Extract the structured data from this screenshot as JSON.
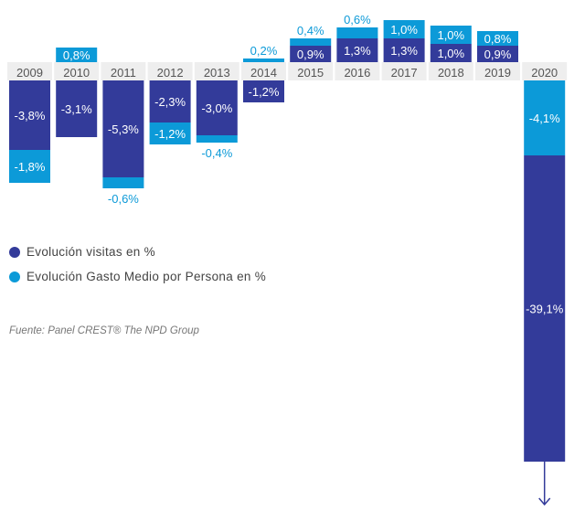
{
  "chart_data": {
    "type": "bar",
    "stacked": true,
    "categories": [
      "2009",
      "2010",
      "2011",
      "2012",
      "2013",
      "2014",
      "2015",
      "2016",
      "2017",
      "2018",
      "2019",
      "2020"
    ],
    "series": [
      {
        "name": "Evolución visitas en %",
        "color": "#333b9a",
        "values": [
          -3.8,
          -3.1,
          -5.3,
          -2.3,
          -3.0,
          -1.2,
          0.9,
          1.3,
          1.3,
          1.0,
          0.9,
          -39.1
        ],
        "labels": [
          "-3,8%",
          "-3,1%",
          "-5,3%",
          "-2,3%",
          "-3,0%",
          "-1,2%",
          "0,9%",
          "1,3%",
          "1,3%",
          "1,0%",
          "0,9%",
          "-39,1%"
        ]
      },
      {
        "name": "Evolución Gasto Medio por Persona en %",
        "color": "#0c9ad8",
        "values": [
          -1.8,
          0.8,
          -0.6,
          -1.2,
          -0.4,
          0.2,
          0.4,
          0.6,
          1.0,
          1.0,
          0.8,
          -4.1
        ],
        "labels": [
          "-1,8%",
          "0,8%",
          "-0,6%",
          "-1,2%",
          "-0,4%",
          "0,2%",
          "0,4%",
          "0,6%",
          "1,0%",
          "1,0%",
          "0,8%",
          "-4,1%"
        ]
      }
    ],
    "truncated_categories": [
      "2020"
    ],
    "grid": false,
    "legend": "bottom-left",
    "source": "Fuente: Panel CREST® The NPD Group"
  }
}
